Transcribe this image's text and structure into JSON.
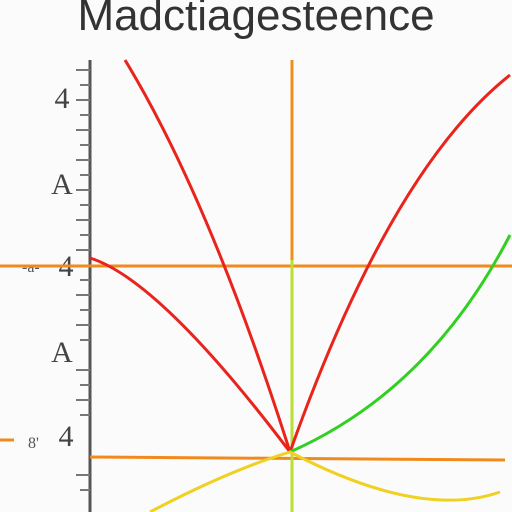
{
  "header": {
    "title": "Madctiagesteence"
  },
  "axis": {
    "labels": [
      "4",
      "A",
      "4",
      "A",
      "4"
    ]
  },
  "side_labels": [
    "-a-",
    "8'"
  ]
}
